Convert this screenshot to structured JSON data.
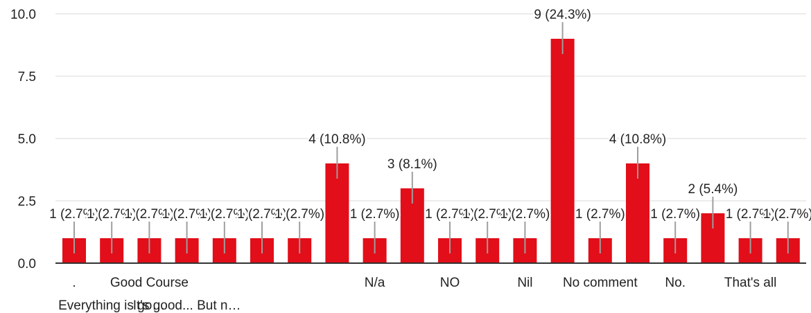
{
  "chart_data": {
    "type": "bar",
    "categories": [
      ".",
      "Everything is go…",
      "Good Course",
      "It's good... But n…",
      "",
      "",
      "",
      "",
      "N/a",
      "",
      "NO",
      "",
      "Nil",
      "",
      "No comment",
      "",
      "No.",
      "",
      "That's all",
      ""
    ],
    "values": [
      1,
      1,
      1,
      1,
      1,
      1,
      1,
      4,
      1,
      3,
      1,
      1,
      1,
      9,
      1,
      4,
      1,
      2,
      1,
      1
    ],
    "data_labels": [
      "1 (2.7%)",
      "1 (2.7%)",
      "1 (2.7%)",
      "1 (2.7%)",
      "1 (2.7%)",
      "1 (2.7%)",
      "1 (2.7%)",
      "4 (10.8%)",
      "1 (2.7%)",
      "3 (8.1%)",
      "1 (2.7%)",
      "1 (2.7%)",
      "1 (2.7%)",
      "9 (24.3%)",
      "1 (2.7%)",
      "4 (10.8%)",
      "1 (2.7%)",
      "2 (5.4%)",
      "1 (2.7%)",
      "1 (2.7%)"
    ],
    "y_ticks": [
      "0.0",
      "2.5",
      "5.0",
      "7.5",
      "10.0"
    ],
    "ylim": [
      0,
      10
    ],
    "grid": true,
    "bar_color": "#e20e19",
    "gridline_color": "#d9d9d9",
    "axis_color": "#333333",
    "leader_color": "#9e9e9e"
  }
}
